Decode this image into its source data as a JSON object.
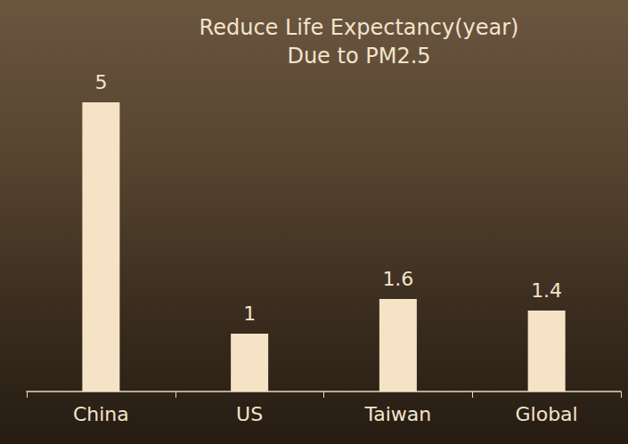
{
  "chart_data": {
    "type": "bar",
    "title": "Reduce Life Expectancy(year)",
    "subtitle": "Due to PM2.5",
    "categories": [
      "China",
      "US",
      "Taiwan",
      "Global"
    ],
    "values": [
      5,
      1,
      1.6,
      1.4
    ],
    "color": "#f6e3c6",
    "ylim": [
      0,
      5
    ],
    "grid": false,
    "data_labels": true,
    "tick_labels": "x"
  }
}
